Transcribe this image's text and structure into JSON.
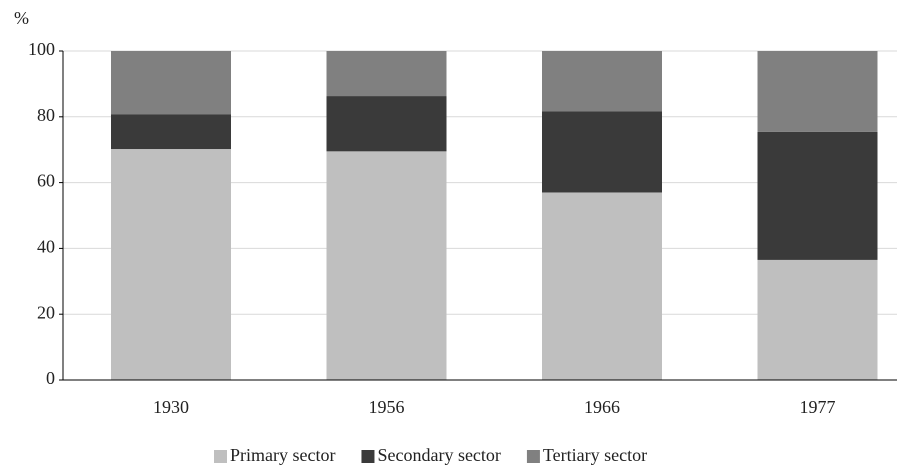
{
  "chart_data": {
    "type": "stacked_bar",
    "y_label": "%",
    "categories": [
      "1930",
      "1956",
      "1966",
      "1977"
    ],
    "series": [
      {
        "name": "Primary sector",
        "color": "#bfbfbf",
        "values": [
          70.2,
          69.5,
          57,
          36.5
        ]
      },
      {
        "name": "Secondary sector",
        "color": "#3a3a3a",
        "values": [
          10.5,
          16.8,
          24.7,
          38.9
        ]
      },
      {
        "name": "Tertiary sector",
        "color": "#808080",
        "values": [
          19.3,
          13.7,
          18.3,
          24.6
        ]
      }
    ],
    "ylim": [
      0,
      100
    ],
    "yticks": [
      0,
      20,
      40,
      60,
      80,
      100
    ],
    "grid": true,
    "legend": "bottom"
  }
}
